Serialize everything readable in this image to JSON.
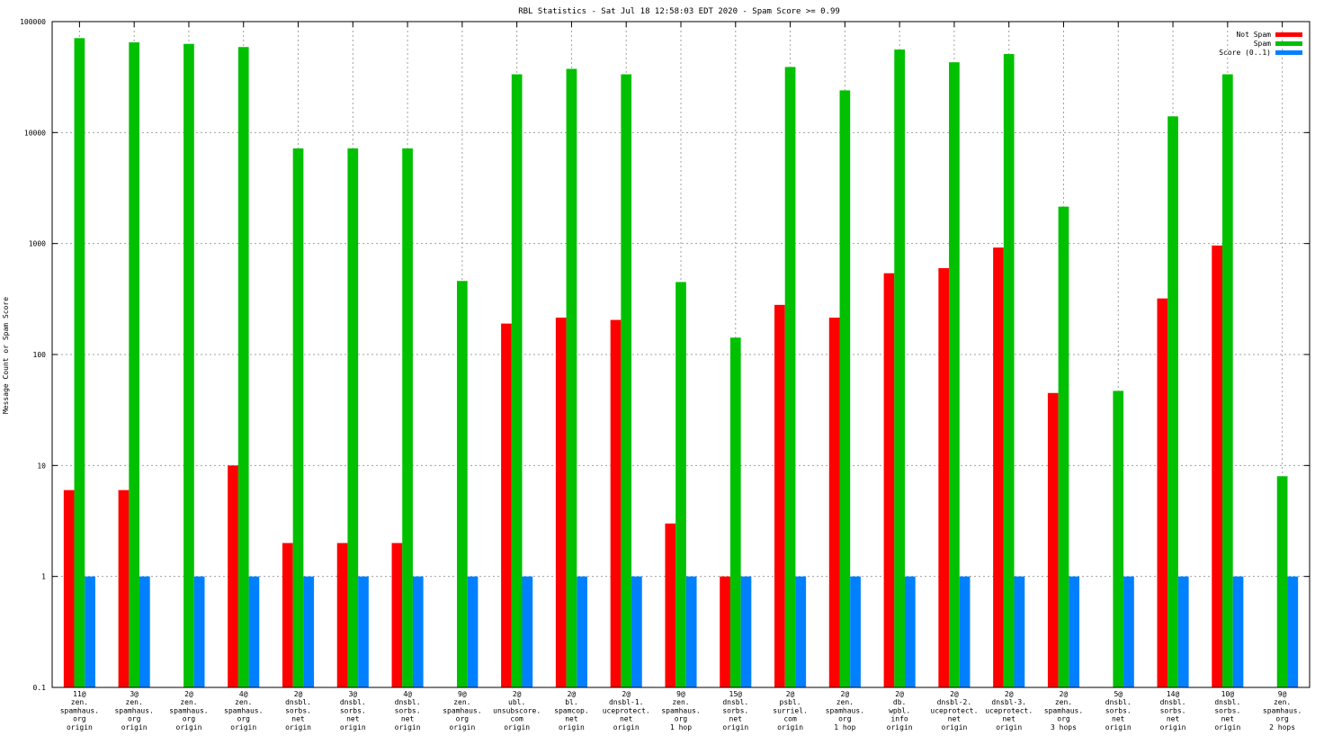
{
  "chart_data": {
    "type": "bar",
    "scale": "log",
    "title": "RBL Statistics - Sat Jul 18 12:58:03 EDT 2020 - Spam Score >= 0.99",
    "xlabel": "",
    "ylabel": "Message Count or Spam Score",
    "ylim": [
      0.1,
      100000
    ],
    "yticks": [
      "0.1",
      "1",
      "10",
      "100",
      "1000",
      "10000",
      "100000"
    ],
    "grid": true,
    "legend_position": "top-right",
    "categories": [
      [
        "11@",
        "zen.",
        "spamhaus.",
        "org",
        "origin"
      ],
      [
        "3@",
        "zen.",
        "spamhaus.",
        "org",
        "origin"
      ],
      [
        "2@",
        "zen.",
        "spamhaus.",
        "org",
        "origin"
      ],
      [
        "4@",
        "zen.",
        "spamhaus.",
        "org",
        "origin"
      ],
      [
        "2@",
        "dnsbl.",
        "sorbs.",
        "net",
        "origin"
      ],
      [
        "3@",
        "dnsbl.",
        "sorbs.",
        "net",
        "origin"
      ],
      [
        "4@",
        "dnsbl.",
        "sorbs.",
        "net",
        "origin"
      ],
      [
        "9@",
        "zen.",
        "spamhaus.",
        "org",
        "origin"
      ],
      [
        "2@",
        "ubl.",
        "unsubscore.",
        "com",
        "origin"
      ],
      [
        "2@",
        "bl.",
        "spamcop.",
        "net",
        "origin"
      ],
      [
        "2@",
        "dnsbl-1.",
        "uceprotect.",
        "net",
        "origin"
      ],
      [
        "9@",
        "zen.",
        "spamhaus.",
        "org",
        "1 hop"
      ],
      [
        "15@",
        "dnsbl.",
        "sorbs.",
        "net",
        "origin"
      ],
      [
        "2@",
        "psbl.",
        "surriel.",
        "com",
        "origin"
      ],
      [
        "2@",
        "zen.",
        "spamhaus.",
        "org",
        "1 hop"
      ],
      [
        "2@",
        "db.",
        "wpbl.",
        "info",
        "origin"
      ],
      [
        "2@",
        "dnsbl-2.",
        "uceprotect.",
        "net",
        "origin"
      ],
      [
        "2@",
        "dnsbl-3.",
        "uceprotect.",
        "net",
        "origin"
      ],
      [
        "2@",
        "zen.",
        "spamhaus.",
        "org",
        "3 hops"
      ],
      [
        "5@",
        "dnsbl.",
        "sorbs.",
        "net",
        "origin"
      ],
      [
        "14@",
        "dnsbl.",
        "sorbs.",
        "net",
        "origin"
      ],
      [
        "10@",
        "dnsbl.",
        "sorbs.",
        "net",
        "origin"
      ],
      [
        "9@",
        "zen.",
        "spamhaus.",
        "org",
        "2 hops"
      ]
    ],
    "series": [
      {
        "name": "Not Spam",
        "color": "#ff0000",
        "values": [
          6,
          6,
          0,
          10,
          2,
          2,
          2,
          0,
          190,
          215,
          205,
          3,
          1,
          280,
          215,
          540,
          600,
          920,
          45,
          0,
          320,
          960,
          0
        ]
      },
      {
        "name": "Spam",
        "color": "#00c000",
        "values": [
          71000,
          65000,
          63000,
          59000,
          7200,
          7200,
          7200,
          460,
          33500,
          37500,
          33500,
          450,
          142,
          39000,
          24000,
          56000,
          43000,
          51000,
          2150,
          47,
          14000,
          33500,
          8
        ]
      },
      {
        "name": "Score (0..1)",
        "color": "#0080ff",
        "values": [
          1,
          1,
          1,
          1,
          1,
          1,
          1,
          1,
          1,
          1,
          1,
          1,
          1,
          1,
          1,
          1,
          1,
          1,
          1,
          1,
          1,
          1,
          1
        ]
      }
    ]
  }
}
